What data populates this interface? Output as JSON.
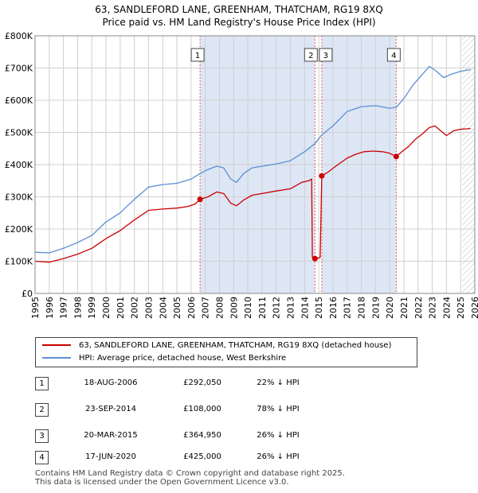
{
  "title_line1": "63, SANDLEFORD LANE, GREENHAM, THATCHAM, RG19 8XQ",
  "title_line2": "Price paid vs. HM Land Registry's House Price Index (HPI)",
  "colors": {
    "property": "#cc0000",
    "hpi": "#5b8fd4",
    "shade": "#dde6f5",
    "grid": "#d0d0d0",
    "marker_line": "#e06060"
  },
  "chart_data": {
    "type": "line",
    "xlim": [
      1995,
      2026
    ],
    "ylim": [
      0,
      800000
    ],
    "x_ticks": [
      1995,
      1996,
      1997,
      1998,
      1999,
      2000,
      2001,
      2002,
      2003,
      2004,
      2005,
      2006,
      2007,
      2008,
      2009,
      2010,
      2011,
      2012,
      2013,
      2014,
      2015,
      2016,
      2017,
      2018,
      2019,
      2020,
      2021,
      2022,
      2023,
      2024,
      2025,
      2026
    ],
    "y_ticks": [
      {
        "value": 0,
        "label": "£0"
      },
      {
        "value": 100000,
        "label": "£100K"
      },
      {
        "value": 200000,
        "label": "£200K"
      },
      {
        "value": 300000,
        "label": "£300K"
      },
      {
        "value": 400000,
        "label": "£400K"
      },
      {
        "value": 500000,
        "label": "£500K"
      },
      {
        "value": 600000,
        "label": "£600K"
      },
      {
        "value": 700000,
        "label": "£700K"
      },
      {
        "value": 800000,
        "label": "£800K"
      }
    ],
    "shaded_ranges": [
      [
        2006.63,
        2014.73
      ],
      [
        2015.21,
        2020.46
      ]
    ],
    "hatched_from": 2025.1,
    "series": [
      {
        "name": "63, SANDLEFORD LANE, GREENHAM, THATCHAM, RG19 8XQ (detached house)",
        "color": "#cc0000",
        "points": [
          [
            1995.0,
            100000
          ],
          [
            1996.0,
            97000
          ],
          [
            1997.0,
            108000
          ],
          [
            1998.0,
            122000
          ],
          [
            1999.0,
            140000
          ],
          [
            2000.0,
            170000
          ],
          [
            2001.0,
            195000
          ],
          [
            2002.0,
            228000
          ],
          [
            2003.0,
            258000
          ],
          [
            2004.0,
            262000
          ],
          [
            2005.0,
            265000
          ],
          [
            2005.8,
            270000
          ],
          [
            2006.3,
            278000
          ],
          [
            2006.63,
            292050
          ],
          [
            2007.2,
            300000
          ],
          [
            2007.8,
            315000
          ],
          [
            2008.3,
            310000
          ],
          [
            2008.8,
            280000
          ],
          [
            2009.2,
            272000
          ],
          [
            2009.7,
            290000
          ],
          [
            2010.3,
            305000
          ],
          [
            2011.0,
            310000
          ],
          [
            2012.0,
            318000
          ],
          [
            2013.0,
            325000
          ],
          [
            2013.8,
            345000
          ],
          [
            2014.3,
            350000
          ],
          [
            2014.5,
            355000
          ],
          [
            2014.55,
            112000
          ],
          [
            2014.73,
            108000
          ],
          [
            2014.85,
            108000
          ],
          [
            2015.0,
            110000
          ],
          [
            2015.1,
            112000
          ],
          [
            2015.21,
            364950
          ],
          [
            2015.6,
            375000
          ],
          [
            2016.2,
            395000
          ],
          [
            2017.0,
            420000
          ],
          [
            2017.6,
            432000
          ],
          [
            2018.2,
            440000
          ],
          [
            2018.8,
            442000
          ],
          [
            2019.5,
            440000
          ],
          [
            2020.0,
            435000
          ],
          [
            2020.46,
            425000
          ],
          [
            2020.8,
            438000
          ],
          [
            2021.3,
            455000
          ],
          [
            2021.8,
            478000
          ],
          [
            2022.3,
            495000
          ],
          [
            2022.8,
            515000
          ],
          [
            2023.2,
            520000
          ],
          [
            2023.6,
            505000
          ],
          [
            2024.0,
            490000
          ],
          [
            2024.5,
            505000
          ],
          [
            2025.0,
            510000
          ],
          [
            2025.7,
            512000
          ]
        ]
      },
      {
        "name": "HPI: Average price, detached house, West Berkshire",
        "color": "#5b8fd4",
        "points": [
          [
            1995.0,
            128000
          ],
          [
            1996.0,
            126000
          ],
          [
            1997.0,
            140000
          ],
          [
            1998.0,
            158000
          ],
          [
            1999.0,
            180000
          ],
          [
            2000.0,
            222000
          ],
          [
            2001.0,
            250000
          ],
          [
            2002.0,
            292000
          ],
          [
            2003.0,
            330000
          ],
          [
            2004.0,
            338000
          ],
          [
            2005.0,
            342000
          ],
          [
            2006.0,
            355000
          ],
          [
            2006.63,
            372000
          ],
          [
            2007.2,
            385000
          ],
          [
            2007.8,
            395000
          ],
          [
            2008.3,
            390000
          ],
          [
            2008.8,
            355000
          ],
          [
            2009.2,
            345000
          ],
          [
            2009.7,
            372000
          ],
          [
            2010.3,
            390000
          ],
          [
            2011.0,
            395000
          ],
          [
            2012.0,
            402000
          ],
          [
            2013.0,
            412000
          ],
          [
            2014.0,
            440000
          ],
          [
            2014.73,
            465000
          ],
          [
            2015.21,
            492000
          ],
          [
            2016.0,
            520000
          ],
          [
            2017.0,
            565000
          ],
          [
            2018.0,
            580000
          ],
          [
            2019.0,
            583000
          ],
          [
            2020.0,
            575000
          ],
          [
            2020.46,
            578000
          ],
          [
            2021.0,
            605000
          ],
          [
            2021.6,
            645000
          ],
          [
            2022.3,
            680000
          ],
          [
            2022.8,
            705000
          ],
          [
            2023.3,
            690000
          ],
          [
            2023.8,
            670000
          ],
          [
            2024.3,
            680000
          ],
          [
            2025.0,
            690000
          ],
          [
            2025.7,
            695000
          ]
        ]
      }
    ],
    "sales": [
      {
        "label": "1",
        "x": 2006.63,
        "y": 292050
      },
      {
        "label": "2",
        "x": 2014.73,
        "y": 108000
      },
      {
        "label": "3",
        "x": 2015.21,
        "y": 364950
      },
      {
        "label": "4",
        "x": 2020.46,
        "y": 425000
      }
    ]
  },
  "legend": {
    "property": "63, SANDLEFORD LANE, GREENHAM, THATCHAM, RG19 8XQ (detached house)",
    "hpi": "HPI: Average price, detached house, West Berkshire"
  },
  "transactions": [
    {
      "num": "1",
      "date": "18-AUG-2006",
      "price": "£292,050",
      "hpi": "22% ↓ HPI"
    },
    {
      "num": "2",
      "date": "23-SEP-2014",
      "price": "£108,000",
      "hpi": "78% ↓ HPI"
    },
    {
      "num": "3",
      "date": "20-MAR-2015",
      "price": "£364,950",
      "hpi": "26% ↓ HPI"
    },
    {
      "num": "4",
      "date": "17-JUN-2020",
      "price": "£425,000",
      "hpi": "26% ↓ HPI"
    }
  ],
  "footer_line1": "Contains HM Land Registry data © Crown copyright and database right 2025.",
  "footer_line2": "This data is licensed under the Open Government Licence v3.0."
}
